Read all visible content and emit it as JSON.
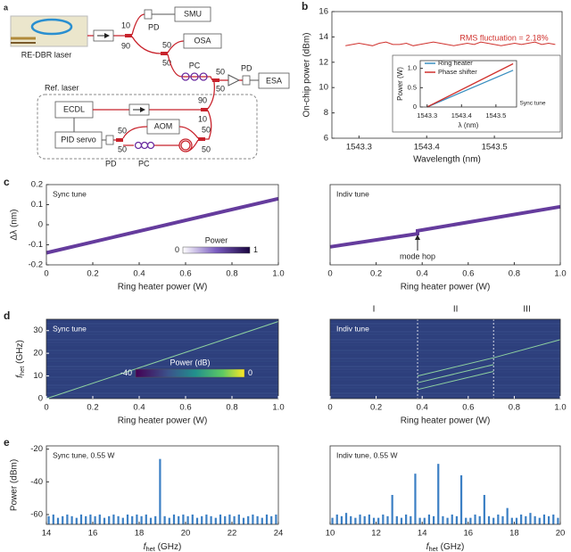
{
  "diagram": {
    "panel": "a",
    "laser": "RE-DBR laser",
    "smu": "SMU",
    "pd1": "PD",
    "osa": "OSA",
    "pc1": "PC",
    "pd2": "PD",
    "esa": "ESA",
    "ref": "Ref. laser",
    "ecdl": "ECDL",
    "aom": "AOM",
    "pid": "PID servo",
    "pd3": "PD",
    "pc2": "PC",
    "ports": [
      "10",
      "90",
      "50",
      "50",
      "50",
      "50",
      "90",
      "10",
      "50",
      "50",
      "50",
      "50"
    ]
  },
  "chart_data": [
    {
      "type": "line",
      "panel": "b",
      "xlabel": "Wavelength (nm)",
      "ylabel": "On-chip power (dBm)",
      "annotation": "RMS fluctuation = 2.18%",
      "x": [
        1543.28,
        1543.29,
        1543.3,
        1543.31,
        1543.32,
        1543.33,
        1543.34,
        1543.35,
        1543.36,
        1543.37,
        1543.38,
        1543.39,
        1543.4,
        1543.41,
        1543.42,
        1543.43,
        1543.44,
        1543.45,
        1543.46,
        1543.47,
        1543.48,
        1543.49,
        1543.5,
        1543.51,
        1543.52,
        1543.53,
        1543.54,
        1543.55,
        1543.56,
        1543.57,
        1543.58,
        1543.59
      ],
      "series": [
        {
          "color": "#d0312d",
          "values": [
            13.3,
            13.4,
            13.5,
            13.4,
            13.3,
            13.5,
            13.6,
            13.4,
            13.4,
            13.5,
            13.3,
            13.4,
            13.5,
            13.6,
            13.5,
            13.4,
            13.3,
            13.4,
            13.5,
            13.4,
            13.6,
            13.5,
            13.4,
            13.3,
            13.4,
            13.5,
            13.4,
            13.5,
            13.6,
            13.4,
            13.5,
            13.4
          ]
        }
      ],
      "xlim": [
        1543.26,
        1543.6
      ],
      "ylim": [
        6,
        16
      ],
      "xticks": [
        1543.3,
        1543.4,
        1543.5
      ],
      "yticks": [
        6,
        8,
        10,
        12,
        14,
        16
      ]
    },
    {
      "type": "line",
      "label": "Sync tune",
      "xlabel": "λ (nm)",
      "ylabel": "Power (W)",
      "legend": "upper left",
      "x": [
        1543.3,
        1543.55
      ],
      "series": [
        {
          "name": "Ring heater",
          "color": "#3a8fc0",
          "values": [
            0,
            0.95
          ]
        },
        {
          "name": "Phase shifter",
          "color": "#d0312d",
          "values": [
            0,
            1.12
          ]
        }
      ],
      "xlim": [
        1543.28,
        1543.56
      ],
      "ylim": [
        0,
        1.2
      ],
      "xticks": [
        1543.3,
        1543.4,
        1543.5
      ],
      "yticks": [
        0,
        0.5,
        {
          "value": 1,
          "label": "1.0"
        }
      ]
    },
    {
      "type": "heatmap",
      "panel": "c",
      "label": "Sync tune",
      "xlabel": "Ring heater power (W)",
      "ylabel": "Δλ (nm)",
      "x": [
        0,
        1
      ],
      "series": [
        {
          "color": "#4a1a8c",
          "values": [
            -0.14,
            0.13
          ]
        }
      ],
      "xlim": [
        0,
        1
      ],
      "ylim": [
        -0.2,
        0.2
      ],
      "xticks": [
        0,
        0.2,
        0.4,
        0.6,
        0.8,
        {
          "value": 1,
          "label": "1.0"
        }
      ],
      "yticks": [
        -0.2,
        -0.1,
        0,
        0.1,
        0.2
      ],
      "colorbar": {
        "label": "Power",
        "ticks": [
          0,
          1
        ]
      }
    },
    {
      "type": "heatmap",
      "label": "Indiv tune",
      "xlabel": "Ring heater power (W)",
      "annotation": "mode hop",
      "x": [
        0,
        0.38,
        0.38,
        1
      ],
      "series": [
        {
          "color": "#4a1a8c",
          "values": [
            -0.11,
            -0.045,
            -0.03,
            0.09
          ]
        }
      ],
      "xlim": [
        0,
        1
      ],
      "ylim": [
        -0.2,
        0.2
      ],
      "xticks": [
        0,
        0.2,
        0.4,
        0.6,
        0.8,
        {
          "value": 1,
          "label": "1.0"
        }
      ]
    },
    {
      "type": "spectrogram",
      "panel": "d",
      "label": "Sync tune",
      "xlabel": "Ring heater power (W)",
      "ylabel": {
        "symbol": "f",
        "subscript": "het",
        "unit": " (GHz)"
      },
      "x": [
        0,
        1
      ],
      "series": [
        {
          "color": "#8fd3a0",
          "values": [
            0,
            34
          ]
        }
      ],
      "xlim": [
        0,
        1
      ],
      "ylim": [
        0,
        35
      ],
      "xticks": [
        0,
        0.2,
        0.4,
        0.6,
        0.8,
        {
          "value": 1,
          "label": "1.0"
        }
      ],
      "yticks": [
        0,
        10,
        20,
        30
      ],
      "colorbar": {
        "label": "Power (dB)",
        "ticks": [
          -40,
          0
        ]
      }
    },
    {
      "type": "spectrogram",
      "label": "Indiv tune",
      "xlabel": "Ring heater power (W)",
      "x": [
        0.38,
        0.71,
        1
      ],
      "series": [
        {
          "color": "#8fd3a0",
          "values": [
            10,
            18,
            26
          ]
        },
        {
          "color": "#8fd3a0",
          "values": [
            7,
            15,
            null
          ]
        },
        {
          "color": "#8fd3a0",
          "values": [
            4,
            12,
            null
          ]
        }
      ],
      "dividers": [
        0.38,
        0.71
      ],
      "region_labels": [
        "I",
        "II",
        "III"
      ],
      "xlim": [
        0,
        1
      ],
      "ylim": [
        0,
        35
      ],
      "xticks": [
        0,
        0.2,
        0.4,
        0.6,
        0.8,
        {
          "value": 1,
          "label": "1.0"
        }
      ]
    },
    {
      "type": "bar",
      "panel": "e",
      "label": "Sync tune, 0.55 W",
      "xlabel": {
        "symbol": "f",
        "subscript": "het",
        "unit": " (GHz)"
      },
      "ylabel": "Power (dBm)",
      "color": "#3b7fc4",
      "x": [
        14.1,
        14.3,
        14.5,
        14.7,
        14.9,
        15.1,
        15.3,
        15.5,
        15.7,
        15.9,
        16.1,
        16.3,
        16.5,
        16.7,
        16.9,
        17.1,
        17.3,
        17.5,
        17.7,
        17.9,
        18.1,
        18.3,
        18.5,
        18.7,
        18.9,
        19.1,
        19.3,
        19.5,
        19.7,
        19.9,
        20.1,
        20.3,
        20.5,
        20.7,
        20.9,
        21.1,
        21.3,
        21.5,
        21.7,
        21.9,
        22.1,
        22.3,
        22.5,
        22.7,
        22.9,
        23.1,
        23.3,
        23.5,
        23.7,
        23.9
      ],
      "values": [
        -61,
        -60,
        -62,
        -61,
        -60,
        -61,
        -62,
        -60,
        -61,
        -60,
        -61,
        -60,
        -62,
        -61,
        -60,
        -61,
        -62,
        -60,
        -61,
        -60,
        -61,
        -60,
        -62,
        -61,
        -26,
        -61,
        -62,
        -60,
        -61,
        -60,
        -61,
        -60,
        -62,
        -61,
        -60,
        -61,
        -62,
        -60,
        -61,
        -60,
        -61,
        -60,
        -62,
        -61,
        -60,
        -61,
        -62,
        -60,
        -61,
        -60
      ],
      "xlim": [
        14,
        24
      ],
      "ylim": [
        -66,
        -18
      ],
      "xticks": [
        14,
        16,
        18,
        20,
        22,
        24
      ],
      "yticks": [
        -60,
        -40,
        -20
      ]
    },
    {
      "type": "bar",
      "label": "Indiv tune, 0.55 W",
      "xlabel": {
        "symbol": "f",
        "subscript": "het",
        "unit": " (GHz)"
      },
      "color": "#3b7fc4",
      "x": [
        10.1,
        10.3,
        10.5,
        10.7,
        10.9,
        11.1,
        11.3,
        11.5,
        11.7,
        11.9,
        12.1,
        12.3,
        12.5,
        12.7,
        12.9,
        13.1,
        13.3,
        13.5,
        13.7,
        13.9,
        14.1,
        14.3,
        14.5,
        14.7,
        14.9,
        15.1,
        15.3,
        15.5,
        15.7,
        15.9,
        16.1,
        16.3,
        16.5,
        16.7,
        16.9,
        17.1,
        17.3,
        17.5,
        17.7,
        17.9,
        18.1,
        18.3,
        18.5,
        18.7,
        18.9,
        19.1,
        19.3,
        19.5,
        19.7,
        19.9
      ],
      "values": [
        -62,
        -60,
        -61,
        -59,
        -61,
        -62,
        -60,
        -61,
        -60,
        -62,
        -62,
        -60,
        -61,
        -48,
        -61,
        -62,
        -60,
        -61,
        -35,
        -62,
        -62,
        -60,
        -61,
        -29,
        -61,
        -62,
        -60,
        -61,
        -36,
        -62,
        -62,
        -60,
        -61,
        -48,
        -61,
        -62,
        -60,
        -61,
        -56,
        -62,
        -62,
        -60,
        -61,
        -59,
        -61,
        -62,
        -60,
        -61,
        -60,
        -62
      ],
      "xlim": [
        10,
        20
      ],
      "ylim": [
        -66,
        -18
      ],
      "xticks": [
        10,
        12,
        14,
        16,
        18,
        20
      ]
    }
  ]
}
